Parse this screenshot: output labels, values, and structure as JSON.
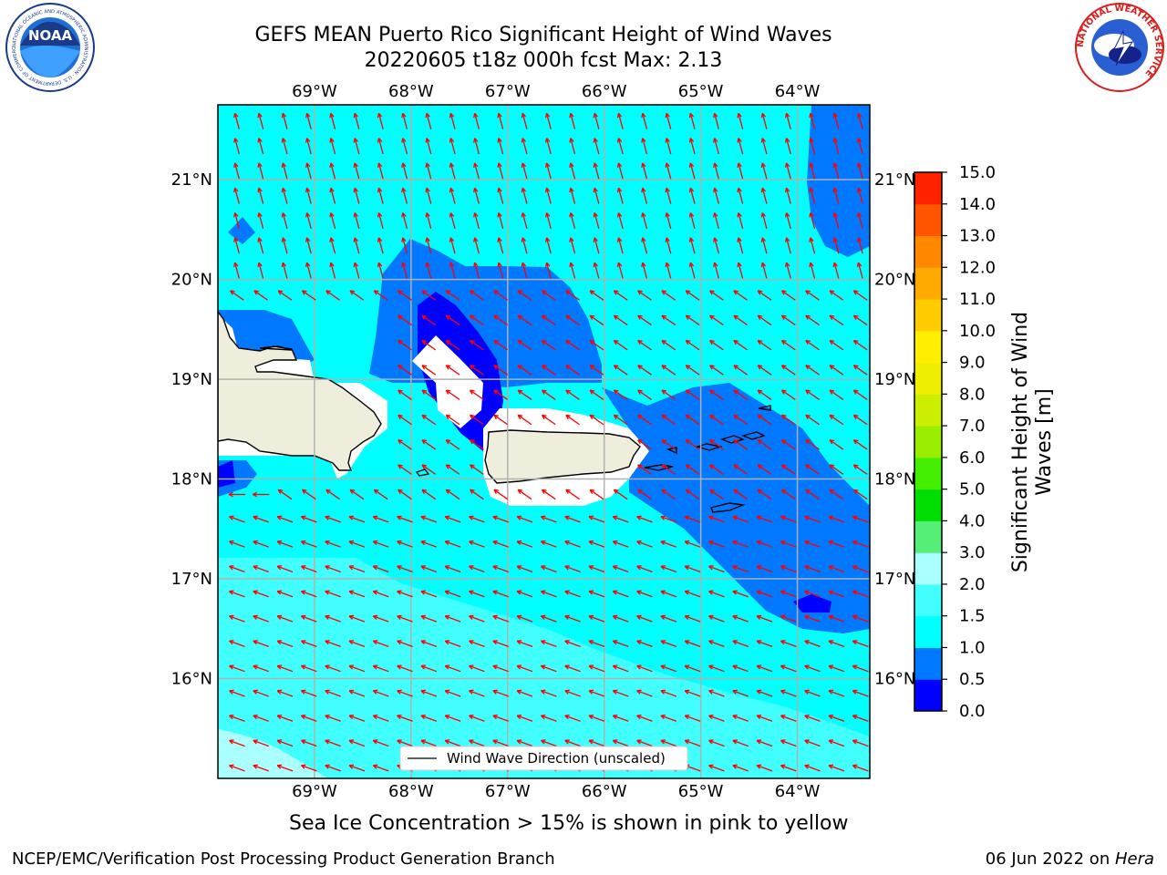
{
  "title": {
    "line1": "GEFS MEAN Puerto Rico Significant Height of Wind Waves",
    "line2": "20220605 t18z 000h fcst   Max: 2.13"
  },
  "map": {
    "lon_labels": [
      "69°W",
      "68°W",
      "67°W",
      "66°W",
      "65°W",
      "64°W"
    ],
    "lon_values": [
      -69,
      -68,
      -67,
      -66,
      -65,
      -64
    ],
    "lat_labels": [
      "21°N",
      "20°N",
      "19°N",
      "18°N",
      "17°N",
      "16°N"
    ],
    "lat_values": [
      21,
      20,
      19,
      18,
      17,
      16
    ],
    "lon_range": [
      -70,
      -63.25
    ],
    "lat_range": [
      15.0,
      21.75
    ],
    "legend_label": "Wind Wave Direction (unscaled)",
    "land_color": "#efeedd",
    "arrow_color": "#ff0000",
    "grid_color": "#b0b0b0"
  },
  "colorbar": {
    "label_line1": "Significant Height of Wind",
    "label_line2": "Waves [m]",
    "levels": [
      "0.0",
      "0.5",
      "1.0",
      "1.5",
      "2.0",
      "3.0",
      "4.0",
      "5.0",
      "6.0",
      "7.0",
      "8.0",
      "9.0",
      "10.0",
      "11.0",
      "12.0",
      "13.0",
      "14.0",
      "15.0"
    ],
    "colors": [
      "#0000ff",
      "#0078ff",
      "#00ffff",
      "#42ffff",
      "#aaffff",
      "#55ee77",
      "#00dd00",
      "#44ee00",
      "#99ee00",
      "#ccee00",
      "#eeee00",
      "#ffee00",
      "#ffcc00",
      "#ffaa00",
      "#ff8800",
      "#ff5500",
      "#ff2200"
    ]
  },
  "caption": "Sea Ice Concentration > 15% is shown in pink to yellow",
  "footer": {
    "left": "NCEP/EMC/Verification Post Processing Product Generation Branch",
    "date": "06 Jun 2022 on ",
    "machine": "Hera"
  },
  "logos": {
    "noaa_text": "NOAA",
    "noaa_ring": "NATIONAL OCEANIC AND ATMOSPHERIC ADMINISTRATION · U.S. DEPARTMENT OF COMMERCE",
    "nws_ring": "NATIONAL WEATHER SERVICE"
  }
}
